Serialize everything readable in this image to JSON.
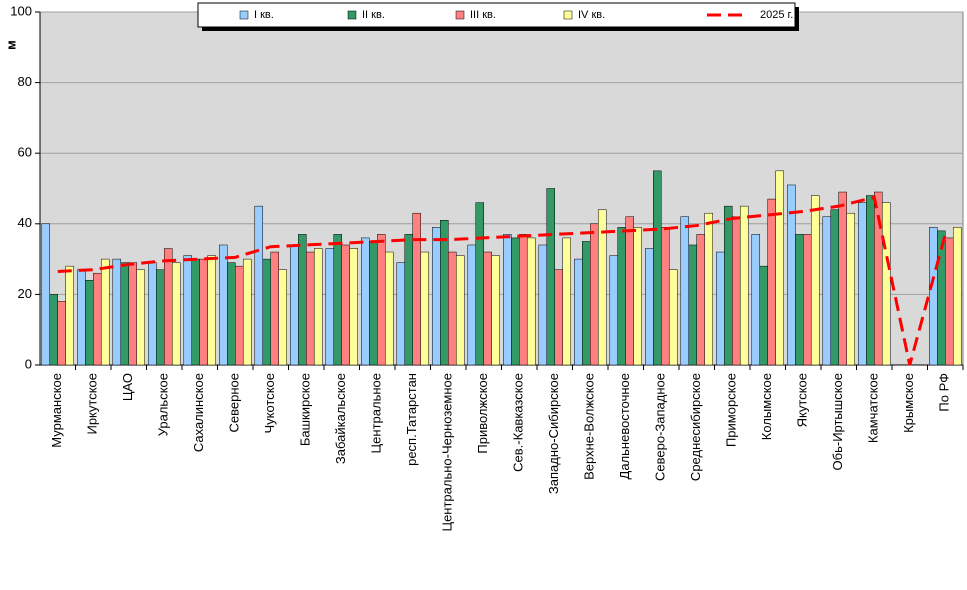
{
  "chart_data": {
    "type": "bar",
    "y_label": "м",
    "categories": [
      "Мурманское",
      "Иркутское",
      "ЦАО",
      "Уральское",
      "Сахалинское",
      "Северное",
      "Чукотское",
      "Башкирское",
      "Забайкальское",
      "Центральное",
      "респ.Татарстан",
      "Центрально-Черноземное",
      "Приволжское",
      "Сев.-Кавказское",
      "Западно-Сибирское",
      "Верхне-Волжское",
      "Дальневосточное",
      "Северо-Западное",
      "Среднесибирское",
      "Приморское",
      "Колымское",
      "Якутское",
      "Обь-Иртышское",
      "Камчатское",
      "Крымское",
      "По РФ"
    ],
    "series": [
      {
        "name": "I кв.",
        "color": "#99ccff",
        "type": "bar",
        "values": [
          40,
          27,
          30,
          29,
          31,
          34,
          45,
          34,
          33,
          36,
          29,
          39,
          34,
          37,
          34,
          30,
          31,
          33,
          42,
          32,
          37,
          51,
          42,
          46,
          null,
          39
        ]
      },
      {
        "name": "II кв.",
        "color": "#339966",
        "type": "bar",
        "values": [
          20,
          24,
          29,
          27,
          30,
          29,
          30,
          37,
          37,
          35,
          37,
          41,
          46,
          36,
          50,
          35,
          39,
          55,
          34,
          45,
          28,
          37,
          44,
          48,
          null,
          38
        ]
      },
      {
        "name": "III кв.",
        "color": "#ff8080",
        "type": "bar",
        "values": [
          18,
          26,
          29,
          33,
          30,
          28,
          32,
          32,
          34,
          37,
          43,
          32,
          32,
          37,
          27,
          40,
          42,
          39,
          37,
          42,
          47,
          37,
          49,
          49,
          null,
          36
        ]
      },
      {
        "name": "IV кв.",
        "color": "#ffff99",
        "type": "bar",
        "values": [
          28,
          30,
          27,
          29,
          31,
          30,
          27,
          33,
          33,
          32,
          32,
          31,
          31,
          36,
          36,
          44,
          39,
          27,
          43,
          45,
          55,
          48,
          43,
          46,
          null,
          39
        ]
      },
      {
        "name": "2025 г.",
        "color": "#ff0000",
        "type": "line",
        "values": [
          26.5,
          27,
          28.5,
          29.5,
          30,
          30.5,
          33.5,
          34,
          34.5,
          35,
          35.5,
          35.5,
          36,
          36.5,
          37,
          37.5,
          38,
          38.5,
          39.5,
          41.5,
          42.5,
          43.5,
          45,
          47.5,
          0,
          37
        ]
      }
    ],
    "ylim": [
      0,
      100
    ],
    "yticks": [
      0,
      20,
      40,
      60,
      80,
      100
    ],
    "grid": true
  }
}
